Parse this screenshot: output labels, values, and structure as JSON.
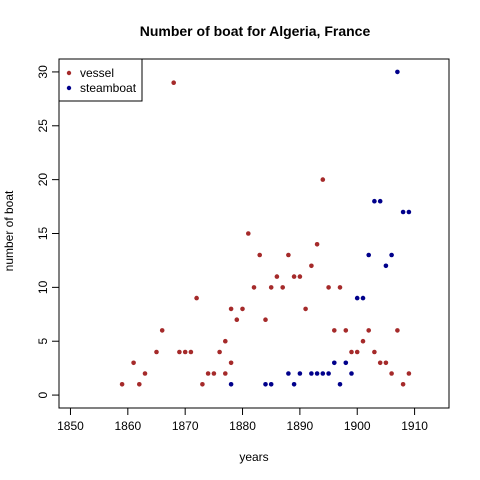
{
  "chart_data": {
    "type": "scatter",
    "title": "Number of boat for Algeria, France",
    "xlabel": "years",
    "ylabel": "number of boat",
    "xlim": [
      1848,
      1916
    ],
    "ylim": [
      -1.2,
      31.2
    ],
    "x_ticks": [
      1850,
      1860,
      1870,
      1880,
      1890,
      1900,
      1910
    ],
    "y_ticks": [
      0,
      5,
      10,
      15,
      20,
      25,
      30
    ],
    "grid": false,
    "legend_position": "top-left",
    "series": [
      {
        "name": "vessel",
        "color": "#a52a2a",
        "points": [
          [
            1859,
            1
          ],
          [
            1861,
            3
          ],
          [
            1862,
            1
          ],
          [
            1863,
            2
          ],
          [
            1865,
            4
          ],
          [
            1866,
            6
          ],
          [
            1868,
            29
          ],
          [
            1869,
            4
          ],
          [
            1870,
            4
          ],
          [
            1871,
            4
          ],
          [
            1872,
            9
          ],
          [
            1873,
            1
          ],
          [
            1874,
            2
          ],
          [
            1875,
            2
          ],
          [
            1876,
            4
          ],
          [
            1877,
            2
          ],
          [
            1877,
            5
          ],
          [
            1878,
            8
          ],
          [
            1878,
            3
          ],
          [
            1879,
            7
          ],
          [
            1880,
            8
          ],
          [
            1881,
            15
          ],
          [
            1882,
            10
          ],
          [
            1883,
            13
          ],
          [
            1884,
            7
          ],
          [
            1885,
            10
          ],
          [
            1886,
            11
          ],
          [
            1887,
            10
          ],
          [
            1888,
            13
          ],
          [
            1889,
            11
          ],
          [
            1890,
            11
          ],
          [
            1891,
            8
          ],
          [
            1892,
            12
          ],
          [
            1893,
            14
          ],
          [
            1894,
            20
          ],
          [
            1895,
            10
          ],
          [
            1896,
            6
          ],
          [
            1897,
            10
          ],
          [
            1898,
            6
          ],
          [
            1899,
            4
          ],
          [
            1900,
            4
          ],
          [
            1901,
            5
          ],
          [
            1902,
            6
          ],
          [
            1903,
            4
          ],
          [
            1904,
            3
          ],
          [
            1905,
            3
          ],
          [
            1906,
            2
          ],
          [
            1907,
            6
          ],
          [
            1908,
            1
          ],
          [
            1909,
            2
          ]
        ]
      },
      {
        "name": "steamboat",
        "color": "#00008b",
        "points": [
          [
            1878,
            1
          ],
          [
            1884,
            1
          ],
          [
            1885,
            1
          ],
          [
            1888,
            2
          ],
          [
            1889,
            1
          ],
          [
            1890,
            2
          ],
          [
            1892,
            2
          ],
          [
            1893,
            2
          ],
          [
            1894,
            2
          ],
          [
            1895,
            2
          ],
          [
            1896,
            3
          ],
          [
            1897,
            1
          ],
          [
            1898,
            3
          ],
          [
            1899,
            2
          ],
          [
            1900,
            9
          ],
          [
            1901,
            9
          ],
          [
            1902,
            13
          ],
          [
            1903,
            18
          ],
          [
            1904,
            18
          ],
          [
            1905,
            12
          ],
          [
            1906,
            13
          ],
          [
            1907,
            30
          ],
          [
            1908,
            17
          ],
          [
            1909,
            17
          ]
        ]
      }
    ]
  }
}
